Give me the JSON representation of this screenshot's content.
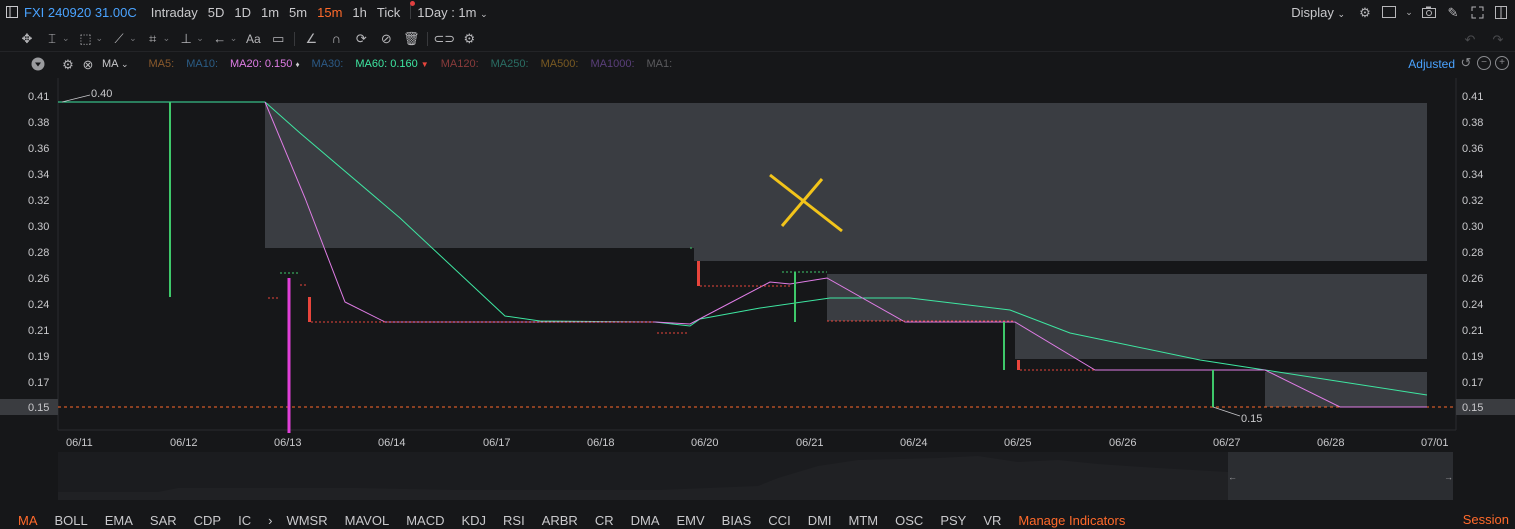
{
  "topbar": {
    "ticker": "FXI 240920 31.00C",
    "periods": [
      "Intraday",
      "5D",
      "1D",
      "1m",
      "5m",
      "15m",
      "1h",
      "Tick"
    ],
    "active_period": "15m",
    "interval_select": "1Day : 1m",
    "display_label": "Display"
  },
  "ma_legend": {
    "items": [
      {
        "label": "MA5:",
        "value": "",
        "color": "#8a5a2c"
      },
      {
        "label": "MA10:",
        "value": "",
        "color": "#2b5d86"
      },
      {
        "label": "MA20:",
        "value": "0.150",
        "color": "#e07de6",
        "marker": "♦"
      },
      {
        "label": "MA30:",
        "value": "",
        "color": "#2c5a86"
      },
      {
        "label": "MA60:",
        "value": "0.160",
        "color": "#3ee6a1",
        "marker": "▼"
      },
      {
        "label": "MA120:",
        "value": "",
        "color": "#8a3b3b"
      },
      {
        "label": "MA250:",
        "value": "",
        "color": "#2a6e64"
      },
      {
        "label": "MA500:",
        "value": "",
        "color": "#7a5a22"
      },
      {
        "label": "MA1000:",
        "value": "",
        "color": "#5a3f7a"
      },
      {
        "label": "MA1:",
        "value": "",
        "color": "#5b5b5e"
      }
    ],
    "selector": "MA",
    "adjusted": "Adjusted"
  },
  "chart_data": {
    "type": "candlestick",
    "y_ticks": [
      "0.41",
      "0.38",
      "0.36",
      "0.34",
      "0.32",
      "0.30",
      "0.28",
      "0.26",
      "0.24",
      "0.21",
      "0.19",
      "0.17",
      "0.15"
    ],
    "x_ticks": [
      "06/11",
      "06/12",
      "06/13",
      "06/14",
      "06/17",
      "06/18",
      "06/20",
      "06/21",
      "06/24",
      "06/25",
      "06/26",
      "06/27",
      "06/28",
      "07/01"
    ],
    "ylim": [
      0.14,
      0.42
    ],
    "high_label": "0.40",
    "low_label": "0.15",
    "current_price": "0.15",
    "series": [
      {
        "name": "MA20",
        "color": "#e07de6"
      },
      {
        "name": "MA60",
        "color": "#3ee6a1"
      }
    ]
  },
  "bottom_indicators": {
    "main": [
      "MA",
      "BOLL",
      "EMA",
      "SAR",
      "CDP",
      "IC"
    ],
    "active": "MA",
    "sub": [
      "WMSR",
      "MAVOL",
      "MACD",
      "KDJ",
      "RSI",
      "ARBR",
      "CR",
      "DMA",
      "EMV",
      "BIAS",
      "CCI",
      "DMI",
      "MTM",
      "OSC",
      "PSY",
      "VR"
    ],
    "manage": "Manage Indicators",
    "session": "Session"
  },
  "colors": {
    "background": "#161719",
    "accent": "#ff6a2b",
    "up": "#3ec86a",
    "down": "#e8453c",
    "gap_fill": "#3a3d42"
  }
}
